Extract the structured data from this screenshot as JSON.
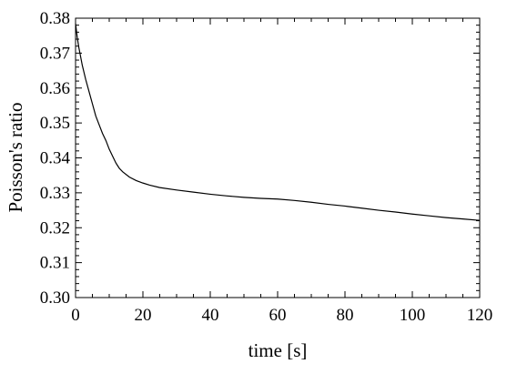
{
  "chart_data": {
    "type": "line",
    "xlabel": "time [s]",
    "ylabel": "Poisson's ratio",
    "xlim": [
      0,
      120
    ],
    "ylim": [
      0.3,
      0.38
    ],
    "xticks": [
      0,
      20,
      40,
      60,
      80,
      100,
      120
    ],
    "xtick_labels": [
      "0",
      "20",
      "40",
      "60",
      "80",
      "100",
      "120"
    ],
    "yticks": [
      0.3,
      0.31,
      0.32,
      0.33,
      0.34,
      0.35,
      0.36,
      0.37,
      0.38
    ],
    "ytick_labels": [
      "0.30",
      "0.31",
      "0.32",
      "0.33",
      "0.34",
      "0.35",
      "0.36",
      "0.37",
      "0.38"
    ],
    "grid": false,
    "series": [
      {
        "color": "#000000",
        "x": [
          0,
          0.5,
          1,
          2,
          3,
          4,
          5,
          6,
          7,
          8,
          9,
          10,
          11,
          12,
          13,
          14,
          16,
          18,
          20,
          22,
          25,
          30,
          35,
          40,
          45,
          50,
          55,
          60,
          65,
          70,
          75,
          80,
          85,
          90,
          95,
          100,
          105,
          110,
          115,
          120
        ],
        "y": [
          0.3785,
          0.3745,
          0.3715,
          0.3665,
          0.3625,
          0.359,
          0.3555,
          0.352,
          0.3495,
          0.347,
          0.345,
          0.3425,
          0.3405,
          0.3385,
          0.337,
          0.336,
          0.3345,
          0.3335,
          0.3328,
          0.3322,
          0.3315,
          0.3308,
          0.3302,
          0.3296,
          0.3291,
          0.3287,
          0.3284,
          0.3282,
          0.3278,
          0.3273,
          0.3267,
          0.3262,
          0.3256,
          0.325,
          0.3245,
          0.3239,
          0.3234,
          0.3229,
          0.3225,
          0.3221
        ]
      }
    ]
  }
}
